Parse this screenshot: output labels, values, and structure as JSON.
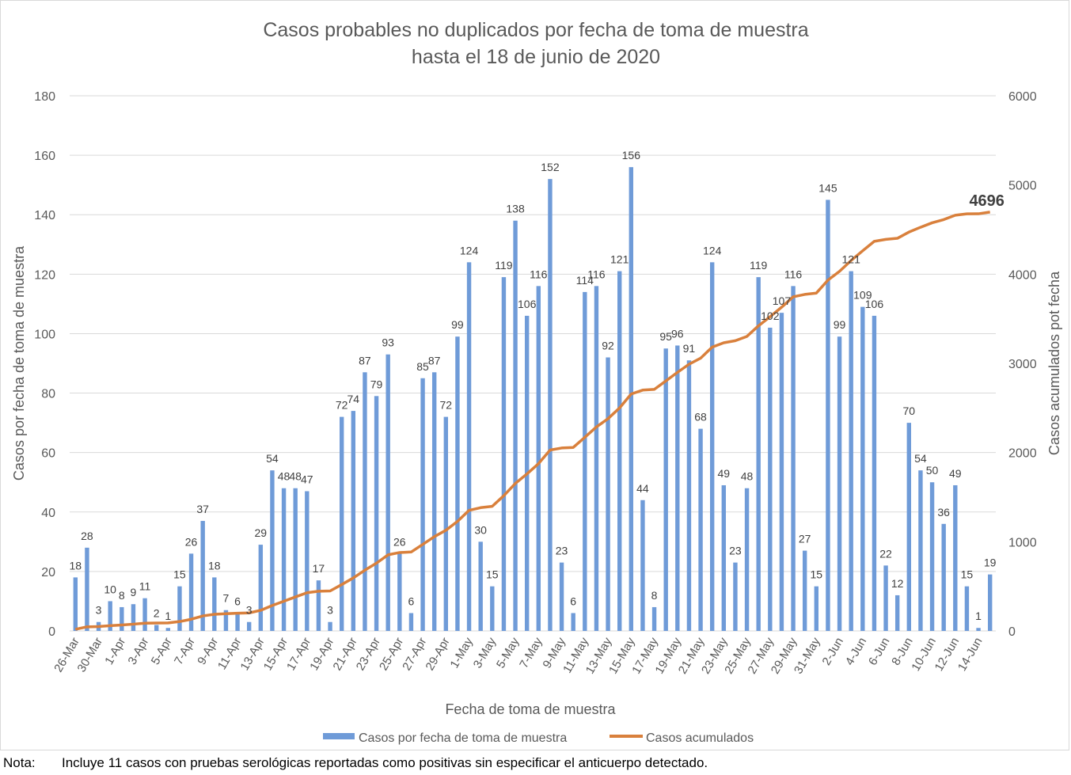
{
  "chart_data": {
    "type": "bar+line",
    "title": [
      "Casos probables no duplicados por fecha de toma de muestra",
      "hasta el 18 de junio de 2020"
    ],
    "xlabel": "Fecha de toma de muestra",
    "ylabel_left": "Casos por fecha de toma de muestra",
    "ylabel_right": "Casos acumulados pot fecha",
    "ylim_left": [
      0,
      180
    ],
    "yticks_left": [
      0,
      20,
      40,
      60,
      80,
      100,
      120,
      140,
      160,
      180
    ],
    "ylim_right": [
      0,
      6000
    ],
    "yticks_right": [
      0,
      1000,
      2000,
      3000,
      4000,
      5000,
      6000
    ],
    "grid": true,
    "legend_position": "bottom",
    "x_tick_labels": [
      "26-Mar",
      "30-Mar",
      "1-Apr",
      "3-Apr",
      "5-Apr",
      "7-Apr",
      "9-Apr",
      "11-Apr",
      "13-Apr",
      "15-Apr",
      "17-Apr",
      "19-Apr",
      "21-Apr",
      "23-Apr",
      "25-Apr",
      "27-Apr",
      "29-Apr",
      "1-May",
      "3-May",
      "5-May",
      "7-May",
      "9-May",
      "11-May",
      "13-May",
      "15-May",
      "17-May",
      "19-May",
      "21-May",
      "23-May",
      "25-May",
      "27-May",
      "29-May",
      "31-May",
      "2-Jun",
      "4-Jun",
      "6-Jun",
      "8-Jun",
      "10-Jun",
      "12-Jun",
      "14-Jun"
    ],
    "series": [
      {
        "name": "Casos por fecha de toma de muestra",
        "type": "bar",
        "axis": "left",
        "color": "#6f9bd8",
        "values": [
          18,
          28,
          3,
          10,
          8,
          9,
          11,
          2,
          1,
          15,
          26,
          37,
          18,
          7,
          6,
          3,
          29,
          54,
          48,
          48,
          47,
          17,
          3,
          72,
          74,
          87,
          79,
          93,
          26,
          6,
          85,
          87,
          72,
          99,
          124,
          30,
          15,
          119,
          138,
          106,
          116,
          152,
          23,
          6,
          114,
          116,
          92,
          121,
          156,
          44,
          8,
          95,
          96,
          91,
          68,
          124,
          49,
          23,
          48,
          119,
          102,
          107,
          116,
          27,
          15,
          145,
          99,
          121,
          109,
          106,
          22,
          12,
          70,
          54,
          50,
          36,
          49,
          15,
          1,
          19
        ]
      },
      {
        "name": "Casos acumulados",
        "type": "line",
        "axis": "right",
        "color": "#d9803c",
        "cumulative_of": "Casos por fecha de toma de muestra",
        "final_label": "4696"
      }
    ]
  },
  "note": {
    "label": "Nota:",
    "text": "Incluye 11 casos con pruebas serológicas reportadas como positivas sin especificar el anticuerpo detectado."
  }
}
